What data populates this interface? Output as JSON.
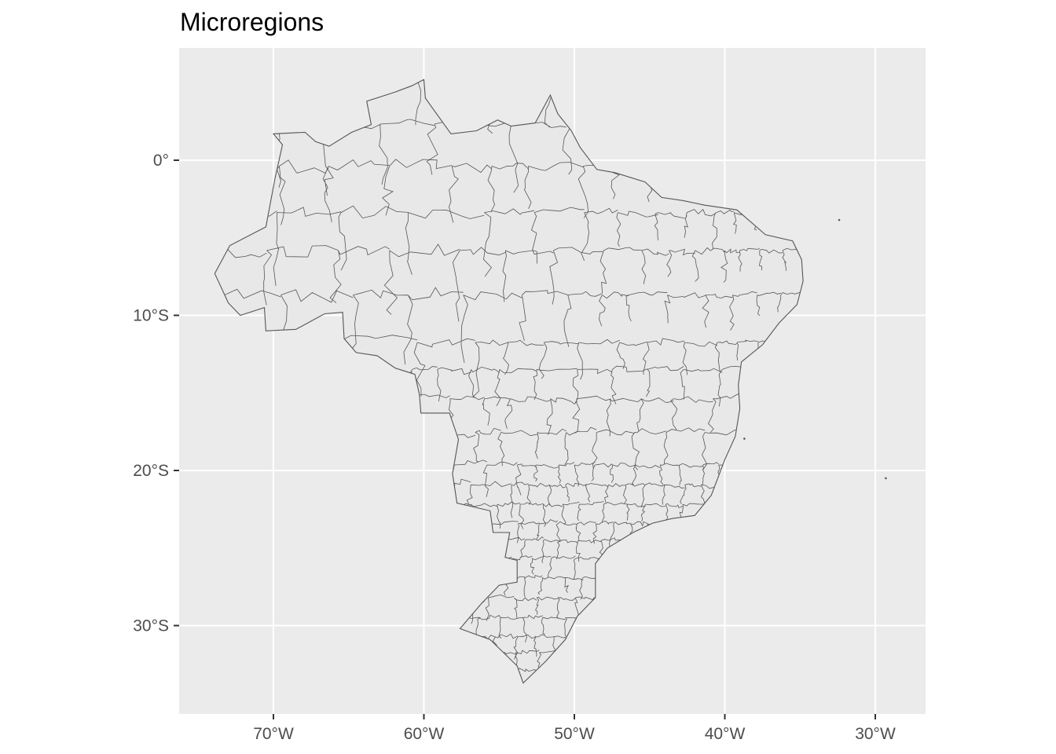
{
  "title": "Microregions",
  "map": {
    "projection": "equirectangular lon/lat",
    "panel_background": "#EBEBEB",
    "gridline_color": "#FFFFFF",
    "region_fill": "#E8E8E8",
    "region_stroke": "#555555",
    "lon_range": [
      -76.2,
      -27.8
    ],
    "lat_range": [
      -36.0,
      7.0
    ],
    "x_axis": {
      "ticks": [
        {
          "value": -70,
          "label": "70°W"
        },
        {
          "value": -60,
          "label": "60°W"
        },
        {
          "value": -50,
          "label": "50°W"
        },
        {
          "value": -40,
          "label": "40°W"
        },
        {
          "value": -30,
          "label": "30°W"
        }
      ]
    },
    "y_axis": {
      "ticks": [
        {
          "value": 0,
          "label": "0°"
        },
        {
          "value": -10,
          "label": "10°S"
        },
        {
          "value": -20,
          "label": "20°S"
        },
        {
          "value": -30,
          "label": "30°S"
        }
      ]
    },
    "outline_lonlat": [
      [
        -73.9,
        -7.3
      ],
      [
        -72.9,
        -5.5
      ],
      [
        -70.5,
        -4.3
      ],
      [
        -69.9,
        -1.2
      ],
      [
        -69.4,
        1.0
      ],
      [
        -70.0,
        1.7
      ],
      [
        -67.9,
        1.8
      ],
      [
        -67.2,
        1.2
      ],
      [
        -66.3,
        0.9
      ],
      [
        -64.8,
        1.8
      ],
      [
        -63.5,
        2.3
      ],
      [
        -63.8,
        3.8
      ],
      [
        -61.9,
        4.4
      ],
      [
        -60.8,
        4.8
      ],
      [
        -60.0,
        5.2
      ],
      [
        -59.9,
        4.0
      ],
      [
        -58.2,
        1.7
      ],
      [
        -56.5,
        1.9
      ],
      [
        -55.1,
        2.6
      ],
      [
        -54.2,
        2.2
      ],
      [
        -52.6,
        2.4
      ],
      [
        -51.6,
        4.2
      ],
      [
        -51.1,
        3.0
      ],
      [
        -50.2,
        1.9
      ],
      [
        -49.6,
        0.8
      ],
      [
        -48.5,
        -0.6
      ],
      [
        -47.3,
        -0.8
      ],
      [
        -45.3,
        -1.4
      ],
      [
        -44.2,
        -2.4
      ],
      [
        -42.8,
        -2.6
      ],
      [
        -41.3,
        -2.9
      ],
      [
        -39.2,
        -3.2
      ],
      [
        -37.3,
        -4.8
      ],
      [
        -35.5,
        -5.2
      ],
      [
        -34.9,
        -6.4
      ],
      [
        -34.8,
        -7.8
      ],
      [
        -35.2,
        -9.3
      ],
      [
        -36.4,
        -10.5
      ],
      [
        -37.5,
        -11.9
      ],
      [
        -38.9,
        -13.0
      ],
      [
        -39.1,
        -14.5
      ],
      [
        -39.0,
        -16.0
      ],
      [
        -39.3,
        -17.8
      ],
      [
        -40.0,
        -19.3
      ],
      [
        -40.9,
        -21.6
      ],
      [
        -42.0,
        -22.9
      ],
      [
        -43.5,
        -23.1
      ],
      [
        -44.8,
        -23.4
      ],
      [
        -46.1,
        -24.0
      ],
      [
        -47.8,
        -25.0
      ],
      [
        -48.6,
        -26.0
      ],
      [
        -48.6,
        -28.2
      ],
      [
        -49.8,
        -29.4
      ],
      [
        -50.6,
        -30.9
      ],
      [
        -51.9,
        -32.3
      ],
      [
        -53.4,
        -33.7
      ],
      [
        -53.8,
        -32.6
      ],
      [
        -55.6,
        -30.9
      ],
      [
        -57.6,
        -30.2
      ],
      [
        -56.2,
        -28.6
      ],
      [
        -55.0,
        -27.4
      ],
      [
        -53.8,
        -27.2
      ],
      [
        -53.8,
        -25.8
      ],
      [
        -54.6,
        -25.6
      ],
      [
        -54.3,
        -24.0
      ],
      [
        -55.4,
        -24.0
      ],
      [
        -55.6,
        -22.6
      ],
      [
        -57.8,
        -22.1
      ],
      [
        -58.1,
        -20.2
      ],
      [
        -57.7,
        -18.0
      ],
      [
        -58.3,
        -16.3
      ],
      [
        -60.2,
        -16.3
      ],
      [
        -60.3,
        -15.1
      ],
      [
        -60.6,
        -13.8
      ],
      [
        -61.9,
        -13.4
      ],
      [
        -63.1,
        -12.6
      ],
      [
        -64.5,
        -12.4
      ],
      [
        -65.3,
        -11.5
      ],
      [
        -65.4,
        -9.8
      ],
      [
        -66.6,
        -9.9
      ],
      [
        -68.5,
        -10.9
      ],
      [
        -70.5,
        -11.0
      ],
      [
        -70.6,
        -9.5
      ],
      [
        -72.2,
        -10.0
      ],
      [
        -73.0,
        -9.2
      ],
      [
        -73.9,
        -7.3
      ]
    ],
    "islands_lonlat": [
      [
        -32.4,
        -3.85
      ],
      [
        -38.7,
        -17.95
      ],
      [
        -29.3,
        -20.5
      ]
    ]
  }
}
